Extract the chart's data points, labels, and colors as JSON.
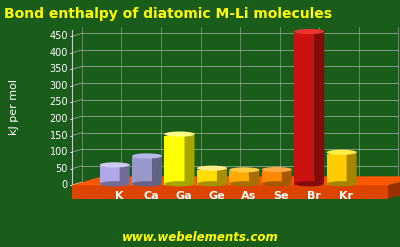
{
  "title": "Bond enthalpy of diatomic M-Li molecules",
  "title_color": "#ffff00",
  "background_color": "#1a5c1a",
  "ylabel": "kJ per mol",
  "ylabel_color": "#ffffff",
  "grid_color": "#cccccc",
  "watermark": "www.webelements.com",
  "watermark_color": "#ffff00",
  "categories": [
    "K",
    "Ca",
    "Ga",
    "Ge",
    "As",
    "Se",
    "Br",
    "Kr"
  ],
  "values": [
    57,
    84,
    150,
    47,
    42,
    43,
    460,
    95
  ],
  "bar_colors": [
    "#b0a8e8",
    "#9898cc",
    "#ffff00",
    "#ffdd00",
    "#ffaa00",
    "#ff8800",
    "#cc1111",
    "#ffcc00"
  ],
  "bar_top_colors": [
    "#d0ccf8",
    "#b8b8e8",
    "#ffff88",
    "#ffee88",
    "#ffcc44",
    "#ffaa44",
    "#ee3333",
    "#ffee44"
  ],
  "ylim": [
    0,
    470
  ],
  "yticks": [
    0,
    50,
    100,
    150,
    200,
    250,
    300,
    350,
    400,
    450
  ],
  "tick_color": "#ffffff",
  "base_color": "#dd4400",
  "base_top_color": "#ff6622",
  "title_fontsize": 10,
  "ylabel_fontsize": 8,
  "tick_fontsize": 7,
  "cat_fontsize": 8
}
